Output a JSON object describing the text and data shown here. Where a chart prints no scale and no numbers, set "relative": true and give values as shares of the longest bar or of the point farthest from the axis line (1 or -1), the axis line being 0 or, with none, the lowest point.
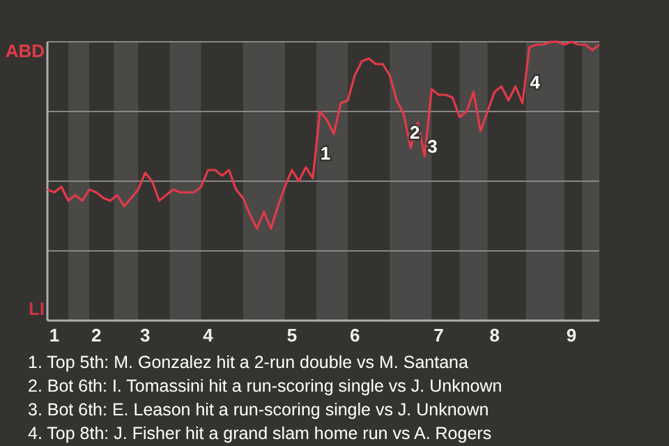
{
  "chart_data": {
    "type": "line",
    "relative": true,
    "categories": [
      null,
      "1",
      null,
      null,
      null,
      null,
      null,
      "2",
      null,
      null,
      null,
      null,
      null,
      null,
      "3",
      null,
      null,
      null,
      null,
      null,
      null,
      null,
      null,
      "4",
      null,
      null,
      null,
      null,
      null,
      null,
      null,
      null,
      null,
      null,
      null,
      "5",
      null,
      null,
      null,
      null,
      null,
      null,
      null,
      null,
      "6",
      null,
      null,
      null,
      null,
      null,
      null,
      null,
      null,
      null,
      null,
      null,
      "7",
      null,
      null,
      null,
      null,
      null,
      null,
      null,
      "8",
      null,
      null,
      null,
      null,
      null,
      null,
      null,
      null,
      null,
      null,
      "9",
      null,
      null,
      null,
      null
    ],
    "series": [
      {
        "color": "#e23a4a",
        "values": [
          0.47,
          0.46,
          0.48,
          0.43,
          0.45,
          0.43,
          0.47,
          0.46,
          0.44,
          0.43,
          0.45,
          0.41,
          0.44,
          0.47,
          0.53,
          0.5,
          0.43,
          0.45,
          0.47,
          0.46,
          0.46,
          0.46,
          0.48,
          0.54,
          0.54,
          0.52,
          0.54,
          0.47,
          0.44,
          0.38,
          0.33,
          0.39,
          0.33,
          0.41,
          0.48,
          0.54,
          0.5,
          0.55,
          0.51,
          0.75,
          0.72,
          0.67,
          0.78,
          0.79,
          0.88,
          0.93,
          0.94,
          0.92,
          0.92,
          0.88,
          0.79,
          0.74,
          0.62,
          0.71,
          0.59,
          0.83,
          0.81,
          0.81,
          0.8,
          0.73,
          0.75,
          0.82,
          0.68,
          0.75,
          0.82,
          0.84,
          0.79,
          0.84,
          0.78,
          0.98,
          0.99,
          0.99,
          1.0,
          1.0,
          0.99,
          1.0,
          0.99,
          0.99,
          0.97,
          0.99
        ]
      }
    ],
    "grid": "y",
    "marker": "none",
    "line_style": "solid",
    "annotations": [
      "ABD",
      "LI",
      "1",
      "2",
      "3",
      "4",
      "1. Top 5th: M. Gonzalez hit a 2-run double vs M. Santana",
      "2. Bot 6th: I. Tomassini hit a run-scoring single vs J. Unknown",
      "3. Bot 6th: E. Leason hit a run-scoring single vs J. Unknown",
      "4. Top 8th: J. Fisher hit a grand slam home run vs A. Rogers"
    ]
  }
}
